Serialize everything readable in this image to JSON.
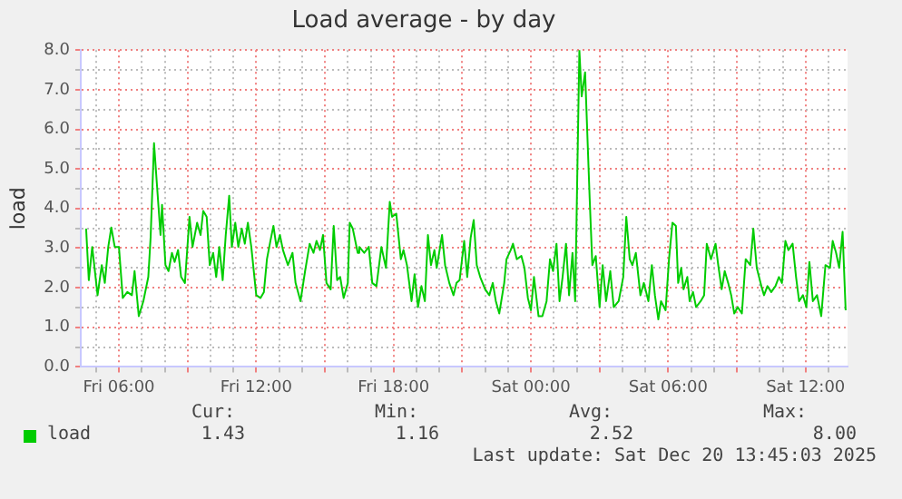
{
  "chart_data": {
    "type": "line",
    "title": "Load average - by day",
    "ylabel": "load",
    "legend": "bottom",
    "grid": true,
    "marker": "none",
    "line_style": "solid",
    "xlim": [
      "2025-12-19T04:20",
      "2025-12-20T13:50"
    ],
    "xticks": [
      {
        "value": "2025-12-19T05:00",
        "label": null
      },
      {
        "value": "2025-12-19T06:00",
        "label": "Fri 06:00"
      },
      {
        "value": "2025-12-19T07:00",
        "label": null
      },
      {
        "value": "2025-12-19T08:00",
        "label": null
      },
      {
        "value": "2025-12-19T09:00",
        "label": null
      },
      {
        "value": "2025-12-19T10:00",
        "label": null
      },
      {
        "value": "2025-12-19T11:00",
        "label": null
      },
      {
        "value": "2025-12-19T12:00",
        "label": "Fri 12:00"
      },
      {
        "value": "2025-12-19T13:00",
        "label": null
      },
      {
        "value": "2025-12-19T14:00",
        "label": null
      },
      {
        "value": "2025-12-19T15:00",
        "label": null
      },
      {
        "value": "2025-12-19T16:00",
        "label": null
      },
      {
        "value": "2025-12-19T17:00",
        "label": null
      },
      {
        "value": "2025-12-19T18:00",
        "label": "Fri 18:00"
      },
      {
        "value": "2025-12-19T19:00",
        "label": null
      },
      {
        "value": "2025-12-19T20:00",
        "label": null
      },
      {
        "value": "2025-12-19T21:00",
        "label": null
      },
      {
        "value": "2025-12-19T22:00",
        "label": null
      },
      {
        "value": "2025-12-19T23:00",
        "label": null
      },
      {
        "value": "2025-12-20T00:00",
        "label": "Sat 00:00"
      },
      {
        "value": "2025-12-20T01:00",
        "label": null
      },
      {
        "value": "2025-12-20T02:00",
        "label": null
      },
      {
        "value": "2025-12-20T03:00",
        "label": null
      },
      {
        "value": "2025-12-20T04:00",
        "label": null
      },
      {
        "value": "2025-12-20T05:00",
        "label": null
      },
      {
        "value": "2025-12-20T06:00",
        "label": "Sat 06:00"
      },
      {
        "value": "2025-12-20T07:00",
        "label": null
      },
      {
        "value": "2025-12-20T08:00",
        "label": null
      },
      {
        "value": "2025-12-20T09:00",
        "label": null
      },
      {
        "value": "2025-12-20T10:00",
        "label": null
      },
      {
        "value": "2025-12-20T11:00",
        "label": null
      },
      {
        "value": "2025-12-20T12:00",
        "label": "Sat 12:00"
      },
      {
        "value": "2025-12-20T13:00",
        "label": null
      }
    ],
    "ylim": [
      0,
      8
    ],
    "yticks": [
      {
        "value": 0,
        "label": "0.0"
      },
      {
        "value": 0.5,
        "label": null
      },
      {
        "value": 1,
        "label": "1.0"
      },
      {
        "value": 1.5,
        "label": null
      },
      {
        "value": 2,
        "label": "2.0"
      },
      {
        "value": 2.5,
        "label": null
      },
      {
        "value": 3,
        "label": "3.0"
      },
      {
        "value": 3.5,
        "label": null
      },
      {
        "value": 4,
        "label": "4.0"
      },
      {
        "value": 4.5,
        "label": null
      },
      {
        "value": 5,
        "label": "5.0"
      },
      {
        "value": 5.5,
        "label": null
      },
      {
        "value": 6,
        "label": "6.0"
      },
      {
        "value": 6.5,
        "label": null
      },
      {
        "value": 7,
        "label": "7.0"
      },
      {
        "value": 7.5,
        "label": null
      },
      {
        "value": 8,
        "label": "8.0"
      }
    ],
    "series": [
      {
        "name": "load",
        "color": "#00cc00",
        "x": [
          "2025-12-19T04:34",
          "2025-12-19T04:41",
          "2025-12-19T04:50",
          "2025-12-19T05:04",
          "2025-12-19T05:15",
          "2025-12-19T05:23",
          "2025-12-19T05:32",
          "2025-12-19T05:40",
          "2025-12-19T05:49",
          "2025-12-19T06:00",
          "2025-12-19T06:10",
          "2025-12-19T06:22",
          "2025-12-19T06:34",
          "2025-12-19T06:41",
          "2025-12-19T06:52",
          "2025-12-19T07:04",
          "2025-12-19T07:17",
          "2025-12-19T07:23",
          "2025-12-19T07:32",
          "2025-12-19T07:40",
          "2025-12-19T07:49",
          "2025-12-19T07:53",
          "2025-12-19T08:02",
          "2025-12-19T08:10",
          "2025-12-19T08:19",
          "2025-12-19T08:26",
          "2025-12-19T08:35",
          "2025-12-19T08:43",
          "2025-12-19T08:53",
          "2025-12-19T09:05",
          "2025-12-19T09:13",
          "2025-12-19T09:25",
          "2025-12-19T09:34",
          "2025-12-19T09:41",
          "2025-12-19T09:50",
          "2025-12-19T09:58",
          "2025-12-19T10:07",
          "2025-12-19T10:15",
          "2025-12-19T10:23",
          "2025-12-19T10:32",
          "2025-12-19T10:40",
          "2025-12-19T10:49",
          "2025-12-19T10:56",
          "2025-12-19T11:05",
          "2025-12-19T11:13",
          "2025-12-19T11:22",
          "2025-12-19T11:30",
          "2025-12-19T11:38",
          "2025-12-19T11:47",
          "2025-12-19T12:00",
          "2025-12-19T12:11",
          "2025-12-19T12:20",
          "2025-12-19T12:28",
          "2025-12-19T12:37",
          "2025-12-19T12:45",
          "2025-12-19T12:53",
          "2025-12-19T13:02",
          "2025-12-19T13:10",
          "2025-12-19T13:23",
          "2025-12-19T13:35",
          "2025-12-19T13:43",
          "2025-12-19T13:56",
          "2025-12-19T14:08",
          "2025-12-19T14:20",
          "2025-12-19T14:30",
          "2025-12-19T14:38",
          "2025-12-19T14:47",
          "2025-12-19T14:55",
          "2025-12-19T15:04",
          "2025-12-19T15:15",
          "2025-12-19T15:23",
          "2025-12-19T15:32",
          "2025-12-19T15:40",
          "2025-12-19T15:49",
          "2025-12-19T16:00",
          "2025-12-19T16:05",
          "2025-12-19T16:13",
          "2025-12-19T16:26",
          "2025-12-19T16:30",
          "2025-12-19T16:43",
          "2025-12-19T16:55",
          "2025-12-19T17:04",
          "2025-12-19T17:15",
          "2025-12-19T17:28",
          "2025-12-19T17:40",
          "2025-12-19T17:50",
          "2025-12-19T17:56",
          "2025-12-19T18:07",
          "2025-12-19T18:19",
          "2025-12-19T18:26",
          "2025-12-19T18:35",
          "2025-12-19T18:47",
          "2025-12-19T18:55",
          "2025-12-19T19:04",
          "2025-12-19T19:13",
          "2025-12-19T19:22",
          "2025-12-19T19:30",
          "2025-12-19T19:38",
          "2025-12-19T19:47",
          "2025-12-19T19:53",
          "2025-12-19T20:07",
          "2025-12-19T20:15",
          "2025-12-19T20:26",
          "2025-12-19T20:37",
          "2025-12-19T20:45",
          "2025-12-19T20:53",
          "2025-12-19T21:05",
          "2025-12-19T21:13",
          "2025-12-19T21:22",
          "2025-12-19T21:30",
          "2025-12-19T21:38",
          "2025-12-19T21:47",
          "2025-12-19T22:00",
          "2025-12-19T22:11",
          "2025-12-19T22:20",
          "2025-12-19T22:28",
          "2025-12-19T22:37",
          "2025-12-19T22:50",
          "2025-12-19T22:56",
          "2025-12-19T23:07",
          "2025-12-19T23:13",
          "2025-12-19T23:23",
          "2025-12-19T23:35",
          "2025-12-19T23:43",
          "2025-12-19T23:52",
          "2025-12-20T00:00",
          "2025-12-20T00:08",
          "2025-12-20T00:20",
          "2025-12-20T00:30",
          "2025-12-20T00:41",
          "2025-12-20T00:50",
          "2025-12-20T00:58",
          "2025-12-20T01:07",
          "2025-12-20T01:15",
          "2025-12-20T01:23",
          "2025-12-20T01:32",
          "2025-12-20T01:40",
          "2025-12-20T01:49",
          "2025-12-20T01:56",
          "2025-12-20T02:07",
          "2025-12-20T02:13",
          "2025-12-20T02:22",
          "2025-12-20T02:34",
          "2025-12-20T02:41",
          "2025-12-20T02:50",
          "2025-12-20T03:00",
          "2025-12-20T03:08",
          "2025-12-20T03:17",
          "2025-12-20T03:28",
          "2025-12-20T03:37",
          "2025-12-20T03:50",
          "2025-12-20T04:02",
          "2025-12-20T04:10",
          "2025-12-20T04:19",
          "2025-12-20T04:26",
          "2025-12-20T04:35",
          "2025-12-20T04:47",
          "2025-12-20T04:56",
          "2025-12-20T05:08",
          "2025-12-20T05:17",
          "2025-12-20T05:25",
          "2025-12-20T05:34",
          "2025-12-20T05:41",
          "2025-12-20T05:53",
          "2025-12-20T06:02",
          "2025-12-20T06:11",
          "2025-12-20T06:20",
          "2025-12-20T06:26",
          "2025-12-20T06:34",
          "2025-12-20T06:40",
          "2025-12-20T06:50",
          "2025-12-20T06:56",
          "2025-12-20T07:05",
          "2025-12-20T07:13",
          "2025-12-20T07:25",
          "2025-12-20T07:34",
          "2025-12-20T07:41",
          "2025-12-20T07:52",
          "2025-12-20T08:04",
          "2025-12-20T08:11",
          "2025-12-20T08:20",
          "2025-12-20T08:28",
          "2025-12-20T08:37",
          "2025-12-20T08:45",
          "2025-12-20T08:53",
          "2025-12-20T09:02",
          "2025-12-20T09:13",
          "2025-12-20T09:23",
          "2025-12-20T09:35",
          "2025-12-20T09:43",
          "2025-12-20T09:52",
          "2025-12-20T10:04",
          "2025-12-20T10:11",
          "2025-12-20T10:20",
          "2025-12-20T10:30",
          "2025-12-20T10:41",
          "2025-12-20T10:50",
          "2025-12-20T10:58",
          "2025-12-20T11:07",
          "2025-12-20T11:15",
          "2025-12-20T11:26",
          "2025-12-20T11:35",
          "2025-12-20T11:43",
          "2025-12-20T11:53",
          "2025-12-20T12:02",
          "2025-12-20T12:10",
          "2025-12-20T12:19",
          "2025-12-20T12:30",
          "2025-12-20T12:41",
          "2025-12-20T12:52",
          "2025-12-20T13:04",
          "2025-12-20T13:11",
          "2025-12-20T13:20",
          "2025-12-20T13:28",
          "2025-12-20T13:37",
          "2025-12-20T13:45"
        ],
        "values": [
          3.49,
          2.19,
          3.03,
          1.81,
          2.57,
          2.12,
          3.03,
          3.52,
          3.03,
          3.03,
          1.74,
          1.89,
          1.81,
          2.42,
          1.28,
          1.66,
          2.27,
          3.26,
          5.65,
          4.55,
          3.33,
          4.09,
          2.57,
          2.42,
          2.88,
          2.65,
          2.95,
          2.27,
          2.12,
          3.79,
          3.03,
          3.64,
          3.33,
          3.94,
          3.79,
          2.57,
          2.88,
          2.27,
          3.03,
          2.19,
          3.33,
          4.32,
          3.03,
          3.64,
          3.03,
          3.49,
          3.11,
          3.64,
          3.03,
          1.81,
          1.74,
          1.89,
          2.72,
          3.18,
          3.56,
          3.03,
          3.33,
          2.95,
          2.57,
          2.88,
          2.12,
          1.66,
          2.42,
          3.11,
          2.88,
          3.18,
          2.95,
          3.33,
          2.12,
          1.96,
          3.56,
          2.19,
          2.27,
          1.74,
          2.12,
          3.64,
          3.49,
          2.88,
          3.03,
          2.88,
          3.03,
          2.12,
          2.04,
          3.03,
          2.5,
          4.17,
          3.79,
          3.87,
          2.72,
          2.95,
          2.57,
          1.66,
          2.34,
          1.51,
          2.04,
          1.66,
          3.33,
          2.57,
          2.95,
          2.5,
          3.33,
          2.57,
          2.12,
          1.81,
          2.12,
          2.19,
          3.18,
          2.27,
          3.26,
          3.71,
          2.57,
          2.27,
          1.96,
          1.81,
          2.12,
          1.66,
          1.35,
          2.12,
          2.72,
          2.95,
          3.11,
          2.72,
          2.8,
          2.5,
          1.74,
          1.43,
          2.27,
          1.28,
          1.28,
          1.66,
          2.72,
          2.42,
          3.11,
          1.66,
          2.27,
          3.11,
          1.81,
          2.88,
          1.66,
          8.0,
          6.83,
          7.44,
          4.25,
          2.57,
          2.8,
          1.51,
          2.57,
          1.66,
          2.42,
          1.51,
          1.66,
          2.27,
          3.79,
          2.72,
          2.57,
          2.88,
          1.81,
          2.12,
          1.66,
          2.57,
          1.81,
          1.2,
          1.66,
          1.43,
          2.72,
          3.64,
          3.56,
          2.12,
          2.5,
          1.96,
          2.27,
          1.66,
          1.89,
          1.51,
          1.66,
          1.81,
          3.11,
          2.72,
          3.11,
          2.57,
          1.96,
          2.42,
          2.12,
          1.81,
          1.35,
          1.51,
          1.35,
          2.72,
          2.57,
          3.49,
          2.5,
          2.04,
          1.81,
          2.04,
          1.89,
          2.04,
          2.27,
          2.12,
          3.18,
          2.95,
          3.11,
          2.27,
          1.66,
          1.81,
          1.51,
          2.65,
          1.66,
          1.81,
          1.28,
          2.57,
          2.5,
          3.18,
          2.88,
          2.5,
          3.41,
          1.43
        ]
      }
    ],
    "annotations": [
      "Cur:",
      "Min:",
      "Avg:",
      "Max:",
      "1.43",
      "1.16",
      "2.52",
      "8.00",
      "Last update: Sat Dec 20 13:45:03 2025"
    ]
  }
}
